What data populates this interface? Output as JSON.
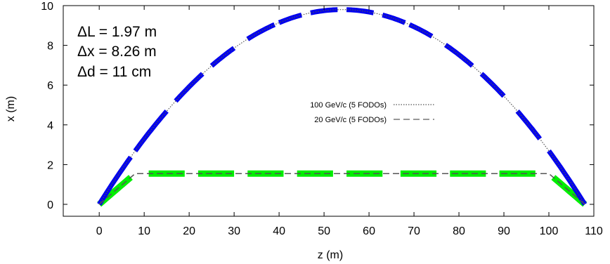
{
  "chart_data": {
    "type": "line",
    "xlabel": "z (m)",
    "ylabel": "x (m)",
    "xlim": [
      -8,
      110
    ],
    "ylim": [
      -0.6,
      10
    ],
    "xticks": [
      0,
      10,
      20,
      30,
      40,
      50,
      60,
      70,
      80,
      90,
      100,
      110
    ],
    "yticks": [
      0,
      2,
      4,
      6,
      8,
      10
    ],
    "grid": false,
    "legend_position": "center-right",
    "annotations": [
      "ΔL = 1.97 m",
      "Δx = 8.26 m",
      "Δd = 11 cm"
    ],
    "series": [
      {
        "name": "100 GeV/c (5 FODOs)",
        "style": "dotted",
        "color": "#555555",
        "z_range": [
          0,
          108
        ],
        "peak": 9.8,
        "shape": "parabola"
      },
      {
        "name": "20 GeV/c (5 FODOs)",
        "style": "dashed",
        "color": "#555555",
        "x": [
          0,
          8,
          100,
          108
        ],
        "y": [
          0,
          1.55,
          1.55,
          0
        ]
      }
    ],
    "magnets_100GeV": {
      "color": "#0000ee",
      "segments": [
        [
          0,
          7
        ],
        [
          8,
          15
        ],
        [
          17,
          23
        ],
        [
          25,
          30
        ],
        [
          33,
          39
        ],
        [
          40,
          45
        ],
        [
          47,
          53
        ],
        [
          55,
          61
        ],
        [
          63,
          68
        ],
        [
          69,
          74
        ],
        [
          77,
          83
        ],
        [
          85,
          90
        ],
        [
          93,
          98
        ],
        [
          100,
          108
        ]
      ]
    },
    "magnets_20GeV": {
      "color": "#00ee00",
      "segments": [
        [
          0,
          7
        ],
        [
          11,
          19
        ],
        [
          22,
          30
        ],
        [
          33,
          41
        ],
        [
          44,
          52
        ],
        [
          55,
          63
        ],
        [
          67,
          75
        ],
        [
          78,
          86
        ],
        [
          89,
          97
        ],
        [
          101,
          108
        ]
      ]
    }
  }
}
